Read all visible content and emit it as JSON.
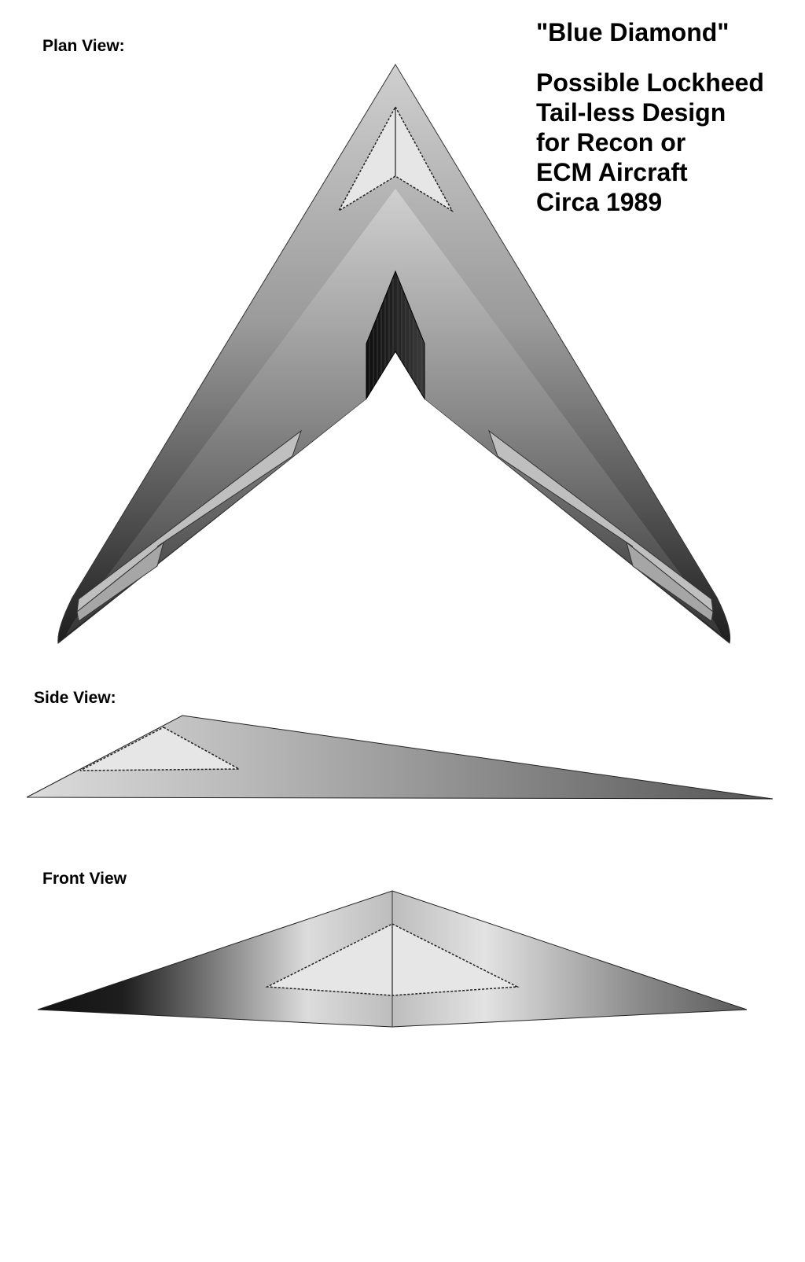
{
  "title": "\"Blue Diamond\"",
  "subtitle_lines": [
    "Possible Lockheed",
    "Tail-less Design",
    "for Recon or",
    "ECM Aircraft",
    "Circa 1989"
  ],
  "views": {
    "plan": "Plan View:",
    "side": "Side View:",
    "front": "Front View"
  },
  "colors": {
    "outline": "#000000",
    "panel_fill": "#e6e6e6",
    "flap_fill": "#bdbdbd",
    "exhaust": "#1a1a1a"
  }
}
